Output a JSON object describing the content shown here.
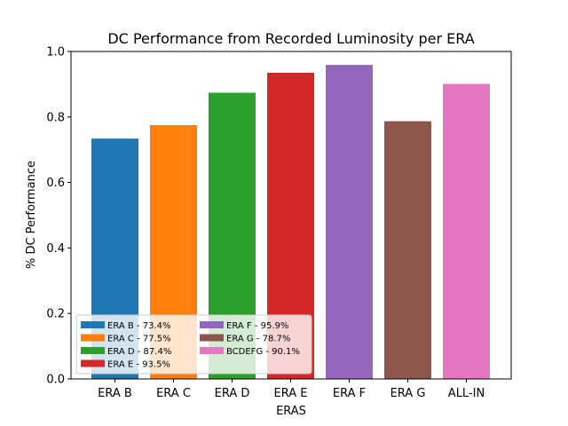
{
  "chart_data": {
    "type": "bar",
    "title": "DC Performance from Recorded Luminosity per ERA",
    "xlabel": "ERAS",
    "ylabel": "% DC Performance",
    "ylim": [
      0,
      1.0
    ],
    "yticks": [
      "0.0",
      "0.2",
      "0.4",
      "0.6",
      "0.8",
      "1.0"
    ],
    "categories": [
      "ERA B",
      "ERA C",
      "ERA D",
      "ERA E",
      "ERA F",
      "ERA G",
      "ALL-IN"
    ],
    "values": [
      0.734,
      0.775,
      0.874,
      0.935,
      0.959,
      0.787,
      0.901
    ],
    "colors": [
      "#1f77b4",
      "#ff7f0e",
      "#2ca02c",
      "#d62728",
      "#9467bd",
      "#8c564b",
      "#e377c2"
    ],
    "grid": false,
    "legend": {
      "placement": "lower-left",
      "entries": [
        "ERA B - 73.4%",
        "ERA C - 77.5%",
        "ERA D - 87.4%",
        "ERA E - 93.5%",
        "ERA F - 95.9%",
        "ERA G - 78.7%",
        "BCDEFG - 90.1%"
      ]
    }
  }
}
